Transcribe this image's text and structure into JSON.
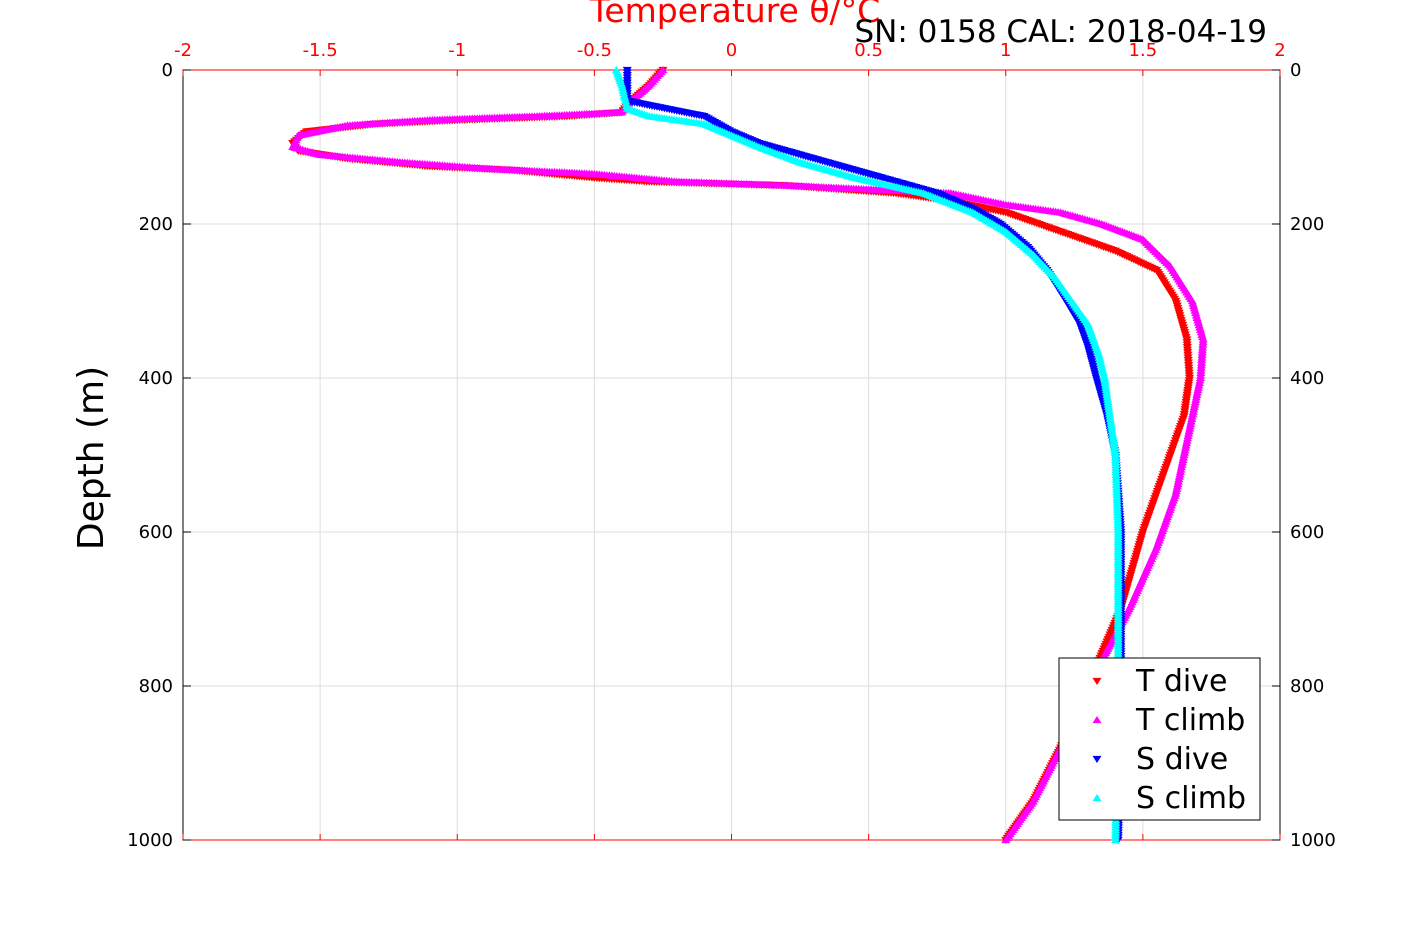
{
  "chart_data": {
    "type": "scatter",
    "title": "Temperature θ/°C",
    "subtitle": "SN: 0158  CAL: 2018-04-19",
    "ylabel": "Depth (m)",
    "xlim": [
      -2,
      2
    ],
    "ylim": [
      0,
      1000
    ],
    "y_reversed": true,
    "x_axis_position": "top",
    "x_ticks": [
      "-2",
      "-1.5",
      "-1",
      "-0.5",
      "0",
      "0.5",
      "1",
      "1.5",
      "2"
    ],
    "y_ticks": [
      "0",
      "200",
      "400",
      "600",
      "800",
      "1000"
    ],
    "grid": true,
    "legend_position": "bottom-right",
    "series": [
      {
        "name": "T dive",
        "color": "#ff0000",
        "marker": "triangle-down",
        "x": [
          -0.25,
          -0.3,
          -0.38,
          -0.4,
          -0.6,
          -1.0,
          -1.3,
          -1.55,
          -1.6,
          -1.58,
          -1.4,
          -1.1,
          -0.8,
          -0.5,
          -0.3,
          0.2,
          0.6,
          0.8,
          1.0,
          1.2,
          1.4,
          1.55,
          1.62,
          1.66,
          1.67,
          1.65,
          1.6,
          1.55,
          1.5,
          1.42,
          1.3,
          1.2,
          1.1,
          1.0
        ],
        "y": [
          0,
          20,
          45,
          55,
          60,
          65,
          70,
          80,
          95,
          105,
          115,
          125,
          130,
          140,
          145,
          150,
          160,
          170,
          185,
          210,
          235,
          260,
          300,
          350,
          400,
          450,
          500,
          550,
          600,
          700,
          800,
          880,
          950,
          1000
        ]
      },
      {
        "name": "T climb",
        "color": "#ff00ff",
        "marker": "triangle-up",
        "x": [
          -0.25,
          -0.3,
          -0.38,
          -0.4,
          -0.7,
          -1.1,
          -1.4,
          -1.58,
          -1.6,
          -1.5,
          -1.2,
          -0.9,
          -0.5,
          -0.2,
          0.2,
          0.5,
          0.8,
          1.0,
          1.2,
          1.35,
          1.5,
          1.6,
          1.68,
          1.72,
          1.71,
          1.68,
          1.65,
          1.62,
          1.55,
          1.45,
          1.3,
          1.2,
          1.1,
          1.0
        ],
        "y": [
          0,
          20,
          45,
          55,
          60,
          65,
          72,
          85,
          100,
          110,
          120,
          128,
          135,
          145,
          150,
          155,
          160,
          175,
          185,
          200,
          220,
          255,
          300,
          350,
          400,
          450,
          500,
          550,
          620,
          700,
          800,
          880,
          950,
          1000
        ]
      },
      {
        "name": "S dive",
        "color": "#0000ff",
        "marker": "triangle-down",
        "x": [
          -0.38,
          -0.38,
          -0.38,
          -0.1,
          0.0,
          0.1,
          0.2,
          0.35,
          0.55,
          0.75,
          0.88,
          0.98,
          1.08,
          1.15,
          1.22,
          1.27,
          1.3,
          1.33,
          1.37,
          1.4,
          1.41,
          1.42,
          1.42,
          1.42,
          1.41
        ],
        "y": [
          0,
          20,
          40,
          60,
          80,
          95,
          105,
          120,
          140,
          160,
          180,
          200,
          230,
          260,
          300,
          330,
          360,
          400,
          450,
          500,
          550,
          600,
          700,
          800,
          1000
        ]
      },
      {
        "name": "S climb",
        "color": "#00ffff",
        "marker": "triangle-up",
        "x": [
          -0.42,
          -0.4,
          -0.38,
          -0.3,
          -0.1,
          0.0,
          0.1,
          0.25,
          0.45,
          0.7,
          0.88,
          1.0,
          1.1,
          1.18,
          1.24,
          1.3,
          1.34,
          1.36,
          1.38,
          1.4,
          1.41,
          1.41,
          1.41,
          1.4
        ],
        "y": [
          0,
          20,
          50,
          60,
          70,
          85,
          100,
          120,
          140,
          160,
          185,
          210,
          240,
          270,
          300,
          330,
          370,
          400,
          450,
          500,
          600,
          700,
          800,
          1000
        ]
      }
    ]
  }
}
